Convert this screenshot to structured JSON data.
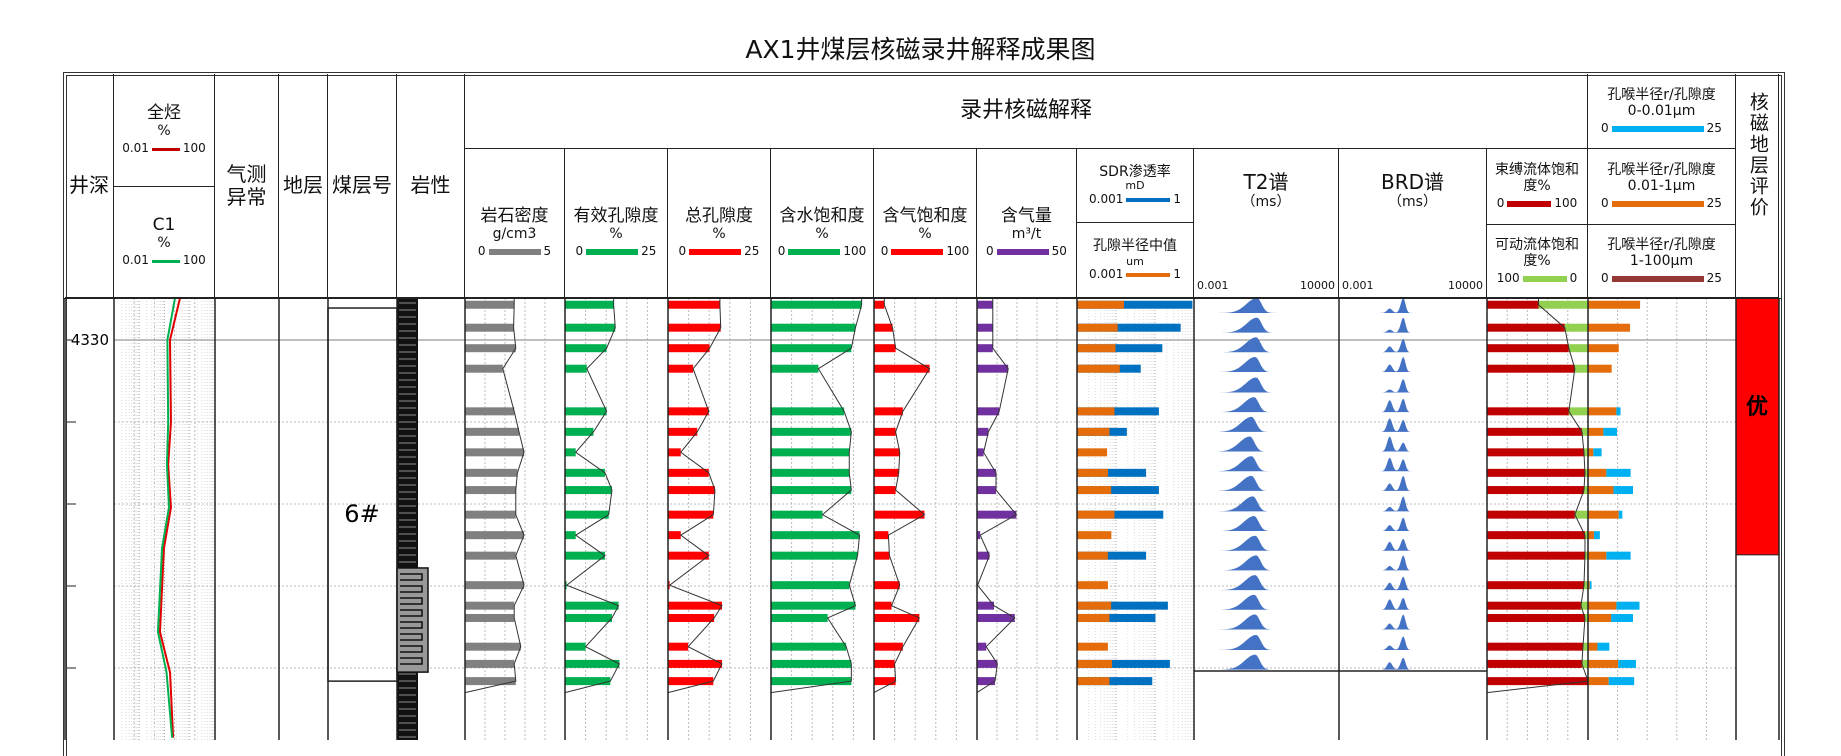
{
  "title": "AX1井煤层核磁录井解释成果图",
  "header": {
    "depth": "井深",
    "total_hc": {
      "name": "全烃",
      "unit": "%",
      "min": "0.01",
      "max": "100"
    },
    "c1": {
      "name": "C1",
      "unit": "%",
      "min": "0.01",
      "max": "100"
    },
    "gas_anomaly": "气测异常",
    "formation": "地层",
    "seam_no": "煤层号",
    "lithology": "岩性",
    "nmr_group": "录井核磁解释",
    "density": {
      "name": "岩石密度",
      "unit": "g/cm3",
      "min": "0",
      "max": "5"
    },
    "eff_por": {
      "name": "有效孔隙度",
      "unit": "%",
      "min": "0",
      "max": "25"
    },
    "tot_por": {
      "name": "总孔隙度",
      "unit": "%",
      "min": "0",
      "max": "25"
    },
    "sw": {
      "name": "含水饱和度",
      "unit": "%",
      "min": "0",
      "max": "100"
    },
    "sg": {
      "name": "含气饱和度",
      "unit": "%",
      "min": "0",
      "max": "100"
    },
    "gas_content": {
      "name": "含气量",
      "unit": "m³/t",
      "min": "0",
      "max": "50"
    },
    "sdr": {
      "name": "SDR渗透率",
      "unit": "mD",
      "min": "0.001",
      "max": "1"
    },
    "pore_median": {
      "name": "孔隙半径中值",
      "unit": "um",
      "min": "0.001",
      "max": "1"
    },
    "t2": {
      "name": "T2谱",
      "unit": "（ms）",
      "min": "0.001",
      "max": "10000"
    },
    "brd": {
      "name": "BRD谱",
      "unit": "（ms）",
      "min": "0.001",
      "max": "10000"
    },
    "bound": {
      "name": "束缚流体饱和度%",
      "min": "0",
      "max": "100"
    },
    "movable": {
      "name": "可动流体饱和度%",
      "min": "100",
      "max": "0"
    },
    "pt1": {
      "name": "孔喉半径r/孔隙度",
      "range": "0-0.01μm",
      "min": "0",
      "max": "25"
    },
    "pt2": {
      "name": "孔喉半径r/孔隙度",
      "range": "0.01-1μm",
      "min": "0",
      "max": "25"
    },
    "pt3": {
      "name": "孔喉半径r/孔隙度",
      "range": "1-100μm",
      "min": "0",
      "max": "25"
    },
    "evaluation": "核磁地层评价"
  },
  "colors": {
    "density": "#808080",
    "eff_por": "#00b050",
    "tot_por": "#ff0000",
    "sw": "#00b050",
    "sg": "#ff0000",
    "gas_content": "#7030a0",
    "sdr": "#0070c0",
    "pore_median": "#e46c0a",
    "bound": "#c00000",
    "movable": "#92d050",
    "pt1": "#00b0f0",
    "pt2": "#e46c0a",
    "pt3": "#953735",
    "total_hc": "#e00000",
    "c1": "#00b050",
    "spectrum": "#4472c4",
    "evaluation": "#ff0000"
  },
  "chart_data": {
    "type": "well-log",
    "depth_range": [
      4329.49,
      4334.88
    ],
    "depth_ticks": [
      4330,
      4331,
      4332,
      4333,
      4334
    ],
    "depth_tick_label": "4330",
    "sample_depths": [
      4329.57,
      4329.85,
      4330.1,
      4330.35,
      4330.87,
      4331.12,
      4331.37,
      4331.62,
      4331.83,
      4332.13,
      4332.38,
      4332.63,
      4332.99,
      4333.24,
      4333.39,
      4333.74,
      4333.95,
      4334.16
    ],
    "density": [
      2.46,
      2.43,
      2.54,
      1.89,
      2.46,
      2.7,
      2.95,
      2.62,
      2.54,
      2.54,
      2.95,
      2.54,
      2.95,
      2.46,
      2.46,
      2.79,
      2.46,
      2.54
    ],
    "eff_por": [
      11.8,
      12.2,
      10.1,
      5.3,
      10.1,
      6.9,
      2.6,
      9.7,
      11.4,
      10.6,
      2.6,
      9.7,
      0.4,
      13.0,
      11.4,
      5.0,
      13.2,
      11.0
    ],
    "tot_por": [
      12.6,
      12.8,
      10.1,
      6.1,
      9.9,
      7.1,
      3.1,
      9.9,
      11.4,
      11.0,
      3.1,
      9.9,
      0.4,
      13.1,
      11.2,
      4.9,
      13.1,
      11.0
    ],
    "sw": [
      88,
      82,
      78,
      46,
      71,
      78,
      76,
      76,
      78,
      50,
      86,
      84,
      76,
      82,
      55,
      73,
      78,
      78
    ],
    "sg": [
      10,
      18,
      21,
      54,
      28,
      21,
      25,
      24,
      21,
      49,
      14,
      15,
      25,
      17,
      44,
      28,
      20,
      21
    ],
    "gas_content": [
      7.9,
      7.9,
      7.9,
      15.6,
      11.1,
      5.7,
      3.3,
      9.5,
      9.5,
      19.7,
      1.6,
      6.2,
      0.3,
      8.5,
      18.9,
      4.6,
      10.2,
      9.0
    ],
    "sdr_perm": [
      0.91,
      0.455,
      0.154,
      0.043,
      0.126,
      0.019,
      null,
      0.059,
      0.126,
      0.163,
      null,
      0.059,
      null,
      0.214,
      0.103,
      null,
      0.241,
      0.085
    ],
    "pore_median": [
      0.016,
      0.011,
      0.0097,
      0.0125,
      0.0091,
      0.0068,
      0.0059,
      0.0062,
      0.0075,
      0.0091,
      0.0076,
      0.0062,
      0.0062,
      0.0075,
      0.0068,
      0.0062,
      0.0079,
      0.0068
    ],
    "bound_fluid": [
      51,
      77,
      81,
      87,
      81,
      94,
      96,
      97,
      96,
      87,
      97,
      97,
      96,
      93,
      97,
      95,
      94,
      100
    ],
    "pore_throat_0_0.01": [
      0,
      0,
      0,
      0,
      0.7,
      2.3,
      1.4,
      4.1,
      3.3,
      0.6,
      1.0,
      4.1,
      0.3,
      3.9,
      3.7,
      2.0,
      3.0,
      4.3
    ],
    "pore_throat_0.01_1": [
      8.8,
      7.1,
      5.2,
      4.0,
      4.8,
      2.6,
      0.9,
      3.1,
      4.3,
      5.2,
      1.0,
      3.1,
      0.3,
      4.8,
      3.9,
      1.6,
      5.1,
      3.5
    ],
    "total_hc_curve": [
      [
        4329.49,
        4.1
      ],
      [
        4330,
        1.65
      ],
      [
        4331,
        1.8
      ],
      [
        4331.52,
        1.4
      ],
      [
        4332.04,
        1.8
      ],
      [
        4332.54,
        0.95
      ],
      [
        4333.56,
        0.66
      ],
      [
        4334.05,
        1.65
      ],
      [
        4334.85,
        2.2
      ]
    ],
    "c1_curve": [
      [
        4329.49,
        2.6
      ],
      [
        4330,
        1.3
      ],
      [
        4331,
        1.4
      ],
      [
        4331.52,
        1.25
      ],
      [
        4332.04,
        1.5
      ],
      [
        4332.54,
        0.8
      ],
      [
        4333.56,
        0.55
      ],
      [
        4334.05,
        1.2
      ],
      [
        4334.85,
        2.0
      ]
    ],
    "spectrum_depths": [
      4329.67,
      4329.91,
      4330.15,
      4330.39,
      4330.64,
      4330.88,
      4331.12,
      4331.36,
      4331.6,
      4331.84,
      4332.09,
      4332.33,
      4332.57,
      4332.81,
      4333.05,
      4333.29,
      4333.53,
      4333.78,
      4334.02
    ],
    "t2_peak_ms": [
      1.1,
      1.1,
      1.0,
      0.9,
      1.0,
      0.8,
      0.6,
      0.5,
      0.6,
      0.6,
      0.7,
      0.8,
      0.9,
      1.0,
      0.9,
      0.8,
      0.9,
      1.0,
      0.9
    ],
    "brd_peaks": [
      [
        0.3,
        1
      ],
      [
        0.2,
        1
      ],
      [
        0.4,
        0.9
      ],
      [
        0.5,
        1
      ],
      [
        0.2,
        0.9
      ],
      [
        0.8,
        0.9
      ],
      [
        0.9,
        0.8
      ],
      [
        1,
        0.6
      ],
      [
        0.9,
        0.8
      ],
      [
        0.5,
        1
      ],
      [
        0.3,
        1
      ],
      [
        0.4,
        0.9
      ],
      [
        0.6,
        0.8
      ],
      [
        0.3,
        1
      ],
      [
        0.5,
        0.9
      ],
      [
        0.7,
        0.8
      ],
      [
        0.4,
        1
      ],
      [
        0.3,
        0.9
      ],
      [
        0.5,
        0.8
      ]
    ],
    "coal_seam": {
      "label": "6#",
      "top": 4329.61,
      "bottom": 4334.16
    },
    "lithology_insert": {
      "top": 4332.78,
      "bottom": 4334.05
    },
    "evaluation": {
      "label": "优",
      "top": 4329.49,
      "bottom": 4332.62
    }
  }
}
